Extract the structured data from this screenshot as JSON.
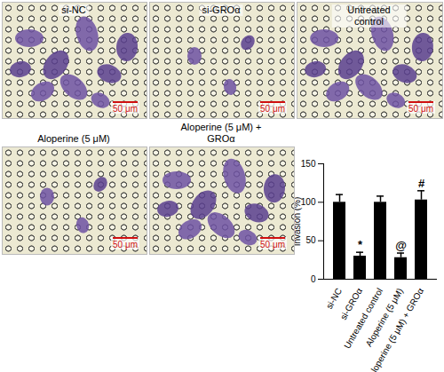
{
  "panels": [
    {
      "label": "si-NC",
      "scale_bar": "50 μm"
    },
    {
      "label": "si-GROα",
      "scale_bar": "50 μm"
    },
    {
      "label": "Untreated control",
      "scale_bar": "50 μm"
    },
    {
      "label": "Aloperine (5 μM)",
      "scale_bar": "50 μm"
    },
    {
      "label": "Aloperine (5 μM) + GROα",
      "scale_bar": "50 μm"
    }
  ],
  "chart_data": {
    "type": "bar",
    "categories": [
      "si-NC",
      "si-GROα",
      "Untreated control",
      "Aloperine (5 μM)",
      "Aloperine (5 μM) + GROα"
    ],
    "values": [
      100,
      30,
      100,
      28,
      103
    ],
    "errors": [
      10,
      5,
      8,
      6,
      12
    ],
    "annotations": [
      null,
      "*",
      null,
      "@",
      "#"
    ],
    "color": "#000000",
    "ylabel": "Invasion (%)",
    "ylim": [
      0,
      150
    ],
    "yticks": [
      0,
      50,
      100,
      150
    ]
  }
}
